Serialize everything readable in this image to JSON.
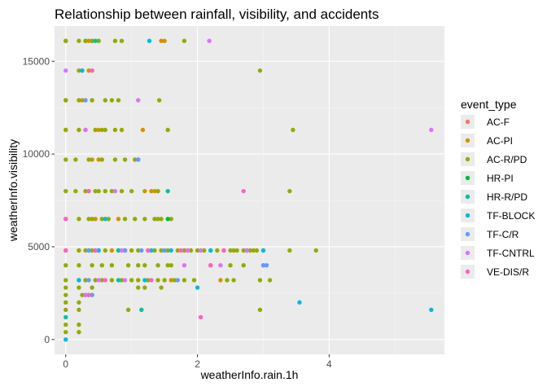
{
  "chart_data": {
    "type": "scatter",
    "title": "Relationship between rainfall, visibility, and accidents",
    "xlabel": "weatherInfo.rain.1h",
    "ylabel": "weatherInfo.visibility",
    "xlim": [
      -0.17,
      5.75
    ],
    "ylim": [
      -800,
      16900
    ],
    "x_ticks": [
      0,
      2,
      4
    ],
    "y_ticks": [
      0,
      5000,
      10000,
      15000
    ],
    "x_tick_labels": [
      "0",
      "2",
      "4"
    ],
    "y_tick_labels": [
      "0",
      "5000",
      "10000",
      "15000"
    ],
    "grid": true,
    "panel_background": "#ebebeb",
    "legend": {
      "title": "event_type",
      "position": "right",
      "entries": [
        {
          "label": "AC-F",
          "color": "#F8766D"
        },
        {
          "label": "AC-PI",
          "color": "#D39200"
        },
        {
          "label": "AC-R/PD",
          "color": "#93AA00"
        },
        {
          "label": "HR-PI",
          "color": "#00BA38"
        },
        {
          "label": "HR-R/PD",
          "color": "#00C19F"
        },
        {
          "label": "TF-BLOCK",
          "color": "#00B9E3"
        },
        {
          "label": "TF-C/R",
          "color": "#619CFF"
        },
        {
          "label": "TF-CNTRL",
          "color": "#DB72FB"
        },
        {
          "label": "VE-DIS/R",
          "color": "#FF61C3"
        }
      ]
    },
    "series": [
      {
        "name": "AC-PI",
        "points": [
          [
            0.0,
            16100
          ],
          [
            0.3,
            16100
          ],
          [
            0.35,
            16100
          ],
          [
            0.4,
            16100
          ],
          [
            1.45,
            16100
          ],
          [
            1.5,
            16100
          ],
          [
            0.0,
            12900
          ],
          [
            0.25,
            12900
          ],
          [
            0.35,
            14500
          ],
          [
            0.4,
            14500
          ],
          [
            0.0,
            11300
          ],
          [
            0.5,
            11300
          ],
          [
            1.17,
            11300
          ],
          [
            1.2,
            8000
          ],
          [
            1.3,
            8000
          ],
          [
            1.35,
            8000
          ],
          [
            0.4,
            9700
          ],
          [
            0.5,
            9700
          ],
          [
            0.35,
            8000
          ],
          [
            0.8,
            6500
          ],
          [
            0.45,
            6500
          ],
          [
            0.2,
            4800
          ],
          [
            0.7,
            4800
          ],
          [
            0.9,
            4800
          ],
          [
            1.85,
            4800
          ],
          [
            1.6,
            3200
          ],
          [
            2.35,
            3200
          ],
          [
            0.4,
            2400
          ],
          [
            0.3,
            3200
          ]
        ]
      },
      {
        "name": "AC-R/PD",
        "points": [
          [
            0.0,
            16100
          ],
          [
            0.2,
            16100
          ],
          [
            0.3,
            16100
          ],
          [
            0.4,
            16100
          ],
          [
            0.5,
            16100
          ],
          [
            0.75,
            16100
          ],
          [
            0.85,
            16100
          ],
          [
            1.8,
            16100
          ],
          [
            2.95,
            14500
          ],
          [
            0.2,
            14500
          ],
          [
            0.25,
            14500
          ],
          [
            0.0,
            12900
          ],
          [
            0.2,
            12900
          ],
          [
            0.4,
            12900
          ],
          [
            0.6,
            12900
          ],
          [
            0.7,
            12900
          ],
          [
            0.8,
            12900
          ],
          [
            1.42,
            12900
          ],
          [
            0.0,
            11300
          ],
          [
            0.2,
            11300
          ],
          [
            0.3,
            11300
          ],
          [
            0.45,
            11300
          ],
          [
            0.55,
            11300
          ],
          [
            0.6,
            11300
          ],
          [
            0.75,
            11300
          ],
          [
            0.85,
            11300
          ],
          [
            1.55,
            11300
          ],
          [
            3.45,
            11300
          ],
          [
            0.0,
            9700
          ],
          [
            0.15,
            9700
          ],
          [
            0.35,
            9700
          ],
          [
            0.55,
            9700
          ],
          [
            0.75,
            9700
          ],
          [
            0.9,
            9700
          ],
          [
            1.05,
            9700
          ],
          [
            0.0,
            8000
          ],
          [
            0.15,
            8000
          ],
          [
            0.3,
            8000
          ],
          [
            0.45,
            8000
          ],
          [
            0.5,
            8000
          ],
          [
            0.6,
            8000
          ],
          [
            0.7,
            8000
          ],
          [
            0.85,
            8000
          ],
          [
            1.0,
            8000
          ],
          [
            1.4,
            8000
          ],
          [
            3.4,
            8000
          ],
          [
            0.0,
            6500
          ],
          [
            0.2,
            6500
          ],
          [
            0.35,
            6500
          ],
          [
            0.4,
            6500
          ],
          [
            0.55,
            6500
          ],
          [
            0.65,
            6500
          ],
          [
            0.9,
            6500
          ],
          [
            1.05,
            6500
          ],
          [
            1.2,
            6500
          ],
          [
            1.35,
            6500
          ],
          [
            1.4,
            6500
          ],
          [
            1.45,
            6500
          ],
          [
            1.6,
            6500
          ],
          [
            0.0,
            4800
          ],
          [
            0.2,
            4800
          ],
          [
            0.3,
            4800
          ],
          [
            0.4,
            4800
          ],
          [
            0.5,
            4800
          ],
          [
            0.6,
            4800
          ],
          [
            0.8,
            4800
          ],
          [
            0.9,
            4800
          ],
          [
            1.0,
            4800
          ],
          [
            1.1,
            4800
          ],
          [
            1.25,
            4800
          ],
          [
            1.35,
            4800
          ],
          [
            1.45,
            4800
          ],
          [
            1.5,
            4800
          ],
          [
            1.55,
            4800
          ],
          [
            1.7,
            4800
          ],
          [
            1.8,
            4800
          ],
          [
            1.9,
            4800
          ],
          [
            2.0,
            4800
          ],
          [
            2.1,
            4800
          ],
          [
            2.2,
            4800
          ],
          [
            2.3,
            4800
          ],
          [
            2.4,
            4800
          ],
          [
            2.5,
            4800
          ],
          [
            2.55,
            4800
          ],
          [
            2.6,
            4800
          ],
          [
            2.7,
            4800
          ],
          [
            2.75,
            4800
          ],
          [
            2.8,
            4800
          ],
          [
            2.85,
            4800
          ],
          [
            2.9,
            4800
          ],
          [
            3.0,
            4800
          ],
          [
            3.4,
            4800
          ],
          [
            3.8,
            4800
          ],
          [
            0.0,
            4000
          ],
          [
            0.2,
            4000
          ],
          [
            0.4,
            4000
          ],
          [
            0.55,
            4000
          ],
          [
            0.7,
            4000
          ],
          [
            0.95,
            4000
          ],
          [
            1.1,
            4000
          ],
          [
            1.2,
            4000
          ],
          [
            1.4,
            4000
          ],
          [
            1.55,
            4000
          ],
          [
            1.6,
            4000
          ],
          [
            2.2,
            4000
          ],
          [
            2.5,
            4000
          ],
          [
            2.7,
            4000
          ],
          [
            3.0,
            4000
          ],
          [
            0.0,
            3200
          ],
          [
            0.2,
            3200
          ],
          [
            0.3,
            3200
          ],
          [
            0.45,
            3200
          ],
          [
            0.55,
            3200
          ],
          [
            0.7,
            3200
          ],
          [
            0.85,
            3200
          ],
          [
            1.0,
            3200
          ],
          [
            1.1,
            3200
          ],
          [
            1.25,
            3200
          ],
          [
            1.4,
            3200
          ],
          [
            1.5,
            3200
          ],
          [
            1.65,
            3200
          ],
          [
            1.8,
            3200
          ],
          [
            1.95,
            3200
          ],
          [
            2.45,
            3200
          ],
          [
            2.55,
            3200
          ],
          [
            2.95,
            3200
          ],
          [
            3.1,
            3200
          ],
          [
            0.0,
            2800
          ],
          [
            0.2,
            2800
          ],
          [
            0.4,
            2800
          ],
          [
            1.1,
            2800
          ],
          [
            1.2,
            2800
          ],
          [
            1.45,
            2800
          ],
          [
            0.0,
            2400
          ],
          [
            0.25,
            2400
          ],
          [
            0.3,
            2400
          ],
          [
            0.35,
            2400
          ],
          [
            0.0,
            2000
          ],
          [
            0.2,
            2000
          ],
          [
            0.0,
            1600
          ],
          [
            0.2,
            1600
          ],
          [
            0.95,
            1600
          ],
          [
            2.95,
            1600
          ],
          [
            0.0,
            800
          ],
          [
            0.2,
            800
          ],
          [
            0.0,
            400
          ],
          [
            0.2,
            400
          ]
        ]
      },
      {
        "name": "HR-PI",
        "points": [
          [
            1.55,
            6500
          ]
        ]
      },
      {
        "name": "HR-R/PD",
        "points": [
          [
            0.45,
            16100
          ],
          [
            0.35,
            4800
          ],
          [
            0.8,
            4800
          ],
          [
            1.55,
            8000
          ],
          [
            1.15,
            1600
          ],
          [
            0.8,
            3200
          ],
          [
            0.3,
            2400
          ],
          [
            0.0,
            1200
          ]
        ]
      },
      {
        "name": "TF-BLOCK",
        "points": [
          [
            1.27,
            16100
          ],
          [
            0.25,
            14500
          ],
          [
            1.1,
            9700
          ],
          [
            0.6,
            6500
          ],
          [
            0.5,
            4800
          ],
          [
            1.3,
            4800
          ],
          [
            1.6,
            4800
          ],
          [
            2.2,
            4800
          ],
          [
            2.75,
            4800
          ],
          [
            3.0,
            4800
          ],
          [
            0.2,
            3200
          ],
          [
            1.2,
            3200
          ],
          [
            2.0,
            2800
          ],
          [
            3.55,
            2000
          ],
          [
            5.55,
            1600
          ],
          [
            0.0,
            0
          ]
        ]
      },
      {
        "name": "TF-C/R",
        "points": [
          [
            0.3,
            12900
          ],
          [
            1.1,
            9700
          ],
          [
            0.35,
            4800
          ],
          [
            0.45,
            4800
          ],
          [
            0.9,
            4800
          ],
          [
            1.15,
            4800
          ],
          [
            1.5,
            4800
          ],
          [
            3.0,
            4000
          ],
          [
            3.05,
            4000
          ],
          [
            0.35,
            3200
          ],
          [
            1.7,
            3200
          ],
          [
            0.4,
            2400
          ]
        ]
      },
      {
        "name": "TF-CNTRL",
        "points": [
          [
            2.18,
            16100
          ],
          [
            1.1,
            12900
          ],
          [
            0.0,
            14500
          ],
          [
            0.3,
            11300
          ],
          [
            5.55,
            11300
          ],
          [
            0.75,
            8000
          ],
          [
            0.85,
            4800
          ],
          [
            1.85,
            4800
          ],
          [
            2.05,
            4800
          ],
          [
            2.75,
            4800
          ],
          [
            1.8,
            4000
          ],
          [
            2.35,
            4000
          ],
          [
            0.5,
            3200
          ],
          [
            0.9,
            3200
          ],
          [
            0.3,
            2400
          ]
        ]
      },
      {
        "name": "VE-DIS/R",
        "points": [
          [
            0.4,
            14500
          ],
          [
            0.35,
            8000
          ],
          [
            2.7,
            8000
          ],
          [
            0.0,
            6500
          ],
          [
            0.45,
            4800
          ],
          [
            1.25,
            4800
          ],
          [
            1.75,
            4800
          ],
          [
            2.4,
            4800
          ],
          [
            0.0,
            4800
          ],
          [
            2.2,
            4000
          ],
          [
            0.6,
            3200
          ],
          [
            1.3,
            3200
          ],
          [
            0.35,
            2400
          ],
          [
            2.05,
            1200
          ]
        ]
      }
    ]
  }
}
